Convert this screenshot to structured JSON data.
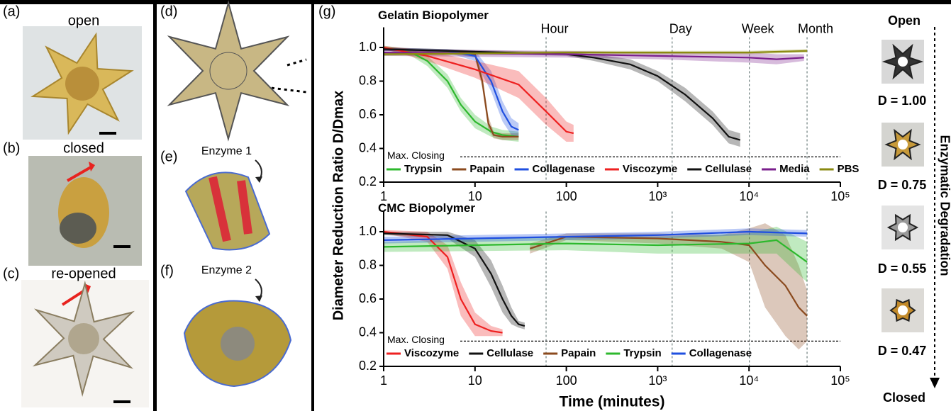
{
  "panels": {
    "a": {
      "label": "(a)",
      "caption": "open"
    },
    "b": {
      "label": "(b)",
      "caption": "closed"
    },
    "c": {
      "label": "(c)",
      "caption": "re-opened"
    },
    "d": {
      "label": "(d)"
    },
    "e": {
      "label": "(e)",
      "caption": "Enzyme 1"
    },
    "f": {
      "label": "(f)",
      "caption": "Enzyme 2"
    },
    "g": {
      "label": "(g)"
    }
  },
  "shared_axes": {
    "ylabel": "Diameter Reduction Ratio D/Dmax",
    "xlabel": "Time  (minutes)"
  },
  "right_column": {
    "top": "Open",
    "bottom": "Closed",
    "arrow_label": "Enzymatic Degradation",
    "states": [
      "D = 1.00",
      "D = 0.75",
      "D = 0.55",
      "D = 0.47"
    ]
  },
  "chart_data": [
    {
      "type": "line",
      "title": "Gelatin Biopolymer",
      "xscale": "log",
      "xlim": [
        1,
        100000
      ],
      "ylim": [
        0.2,
        1.12
      ],
      "xticks": [
        1,
        10,
        100,
        {
          "value": 1000,
          "label": "10³"
        },
        {
          "value": 10000,
          "label": "10⁴"
        },
        {
          "value": 100000,
          "label": "10⁵"
        }
      ],
      "yticks": [
        0.2,
        0.4,
        0.6,
        0.8,
        {
          "value": 1,
          "label": "1.0"
        }
      ],
      "vlines": [
        {
          "label": "Hour",
          "x": 60
        },
        {
          "label": "Day",
          "x": 1440
        },
        {
          "label": "Week",
          "x": 10080
        },
        {
          "label": "Month",
          "x": 43200
        }
      ],
      "hline": {
        "label": "Max. Closing",
        "y": 0.35
      },
      "legend": "lower left",
      "series": [
        {
          "name": "Trypsin",
          "color": "#2db82d",
          "x": [
            1,
            2,
            3,
            5,
            7,
            10,
            15,
            20,
            30
          ],
          "values": [
            1.0,
            0.97,
            0.92,
            0.8,
            0.66,
            0.56,
            0.5,
            0.48,
            0.47
          ],
          "errors": [
            0.01,
            0.02,
            0.03,
            0.04,
            0.04,
            0.04,
            0.03,
            0.03,
            0.03
          ]
        },
        {
          "name": "Papain",
          "color": "#8b4a1e",
          "x": [
            1,
            5,
            10,
            12,
            14,
            16,
            20,
            30
          ],
          "values": [
            0.99,
            0.98,
            0.96,
            0.8,
            0.55,
            0.48,
            0.47,
            0.47
          ],
          "errors": [
            0.01,
            0.01,
            0.02,
            0.04,
            0.04,
            0.02,
            0.02,
            0.02
          ]
        },
        {
          "name": "Collagenase",
          "color": "#1f4fe0",
          "x": [
            1,
            5,
            10,
            15,
            20,
            25,
            30
          ],
          "values": [
            0.99,
            0.98,
            0.95,
            0.8,
            0.62,
            0.53,
            0.51
          ],
          "errors": [
            0.01,
            0.01,
            0.03,
            0.06,
            0.06,
            0.05,
            0.04
          ]
        },
        {
          "name": "Viscozyme",
          "color": "#ee2020",
          "x": [
            1,
            3,
            10,
            30,
            60,
            100,
            120
          ],
          "values": [
            1.0,
            0.95,
            0.87,
            0.78,
            0.62,
            0.5,
            0.49
          ],
          "errors": [
            0.01,
            0.03,
            0.05,
            0.08,
            0.08,
            0.06,
            0.05
          ]
        },
        {
          "name": "Cellulase",
          "color": "#111111",
          "x": [
            1,
            100,
            200,
            500,
            1000,
            2000,
            4000,
            6000,
            8000
          ],
          "values": [
            0.99,
            0.96,
            0.94,
            0.9,
            0.83,
            0.72,
            0.58,
            0.47,
            0.45
          ],
          "errors": [
            0.01,
            0.01,
            0.02,
            0.03,
            0.03,
            0.04,
            0.04,
            0.04,
            0.04
          ]
        },
        {
          "name": "Media",
          "color": "#7a1e8c",
          "x": [
            1,
            100,
            1000,
            10000,
            20000,
            40000
          ],
          "values": [
            0.97,
            0.96,
            0.95,
            0.94,
            0.93,
            0.94
          ],
          "errors": [
            0.02,
            0.02,
            0.02,
            0.03,
            0.03,
            0.02
          ]
        },
        {
          "name": "PBS",
          "color": "#8a8a10",
          "x": [
            1,
            100,
            1000,
            10000,
            43200
          ],
          "values": [
            0.96,
            0.97,
            0.97,
            0.97,
            0.98
          ],
          "errors": [
            0.01,
            0.01,
            0.01,
            0.01,
            0.01
          ]
        }
      ]
    },
    {
      "type": "line",
      "title": "CMC Biopolymer",
      "xscale": "log",
      "xlim": [
        1,
        100000
      ],
      "ylim": [
        0.2,
        1.12
      ],
      "xticks": [
        1,
        10,
        100,
        {
          "value": 1000,
          "label": "10³"
        },
        {
          "value": 10000,
          "label": "10⁴"
        },
        {
          "value": 100000,
          "label": "10⁵"
        }
      ],
      "yticks": [
        0.2,
        0.4,
        0.6,
        0.8,
        {
          "value": 1,
          "label": "1.0"
        }
      ],
      "vlines": [
        {
          "x": 60
        },
        {
          "x": 1440
        },
        {
          "x": 10080
        },
        {
          "x": 43200
        }
      ],
      "hline": {
        "label": "Max. Closing",
        "y": 0.35
      },
      "legend": "lower left",
      "series": [
        {
          "name": "Viscozyme",
          "color": "#ee2020",
          "x": [
            1,
            3,
            5,
            7,
            10,
            15,
            20
          ],
          "values": [
            1.0,
            0.97,
            0.85,
            0.6,
            0.45,
            0.41,
            0.4
          ],
          "errors": [
            0.01,
            0.03,
            0.07,
            0.1,
            0.07,
            0.03,
            0.02
          ]
        },
        {
          "name": "Cellulase",
          "color": "#111111",
          "x": [
            1,
            5,
            10,
            15,
            20,
            25,
            30,
            35
          ],
          "values": [
            0.99,
            0.98,
            0.9,
            0.75,
            0.6,
            0.5,
            0.45,
            0.44
          ],
          "errors": [
            0.01,
            0.02,
            0.05,
            0.08,
            0.08,
            0.05,
            0.02,
            0.02
          ]
        },
        {
          "name": "Papain",
          "color": "#8b4a1e",
          "x": [
            40,
            100,
            1000,
            5000,
            10000,
            15000,
            25000,
            35000,
            43200
          ],
          "values": [
            0.9,
            0.97,
            0.96,
            0.94,
            0.92,
            0.8,
            0.68,
            0.55,
            0.5
          ],
          "errors": [
            0.03,
            0.02,
            0.03,
            0.04,
            0.1,
            0.25,
            0.3,
            0.25,
            0.15
          ]
        },
        {
          "name": "Trypsin",
          "color": "#2db82d",
          "x": [
            1,
            100,
            1000,
            10000,
            20000,
            43200
          ],
          "values": [
            0.91,
            0.93,
            0.92,
            0.93,
            0.95,
            0.82
          ],
          "errors": [
            0.03,
            0.04,
            0.05,
            0.06,
            0.08,
            0.12
          ]
        },
        {
          "name": "Collagenase",
          "color": "#1f4fe0",
          "x": [
            1,
            100,
            1000,
            10000,
            43200
          ],
          "values": [
            0.95,
            0.97,
            0.98,
            1.0,
            0.99
          ],
          "errors": [
            0.02,
            0.02,
            0.02,
            0.02,
            0.02
          ]
        }
      ]
    }
  ]
}
